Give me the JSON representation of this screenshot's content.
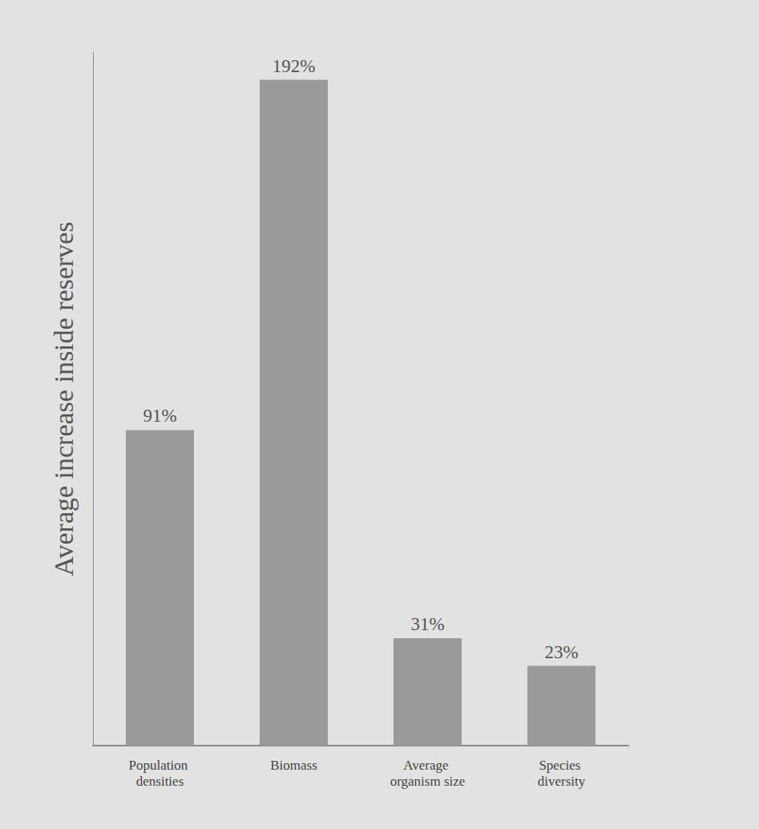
{
  "chart_data": {
    "type": "bar",
    "y_label": "Average increase inside reserves",
    "categories": [
      "Population densities",
      "Biomass",
      "Average organism size",
      "Species diversity"
    ],
    "values": [
      91,
      192,
      31,
      23
    ],
    "value_labels": [
      "91%",
      "192%",
      "31%",
      "23%"
    ],
    "color": "#9a9a9a",
    "ylim": [
      0,
      200
    ],
    "data_labels": true,
    "tick_labels": "x",
    "grid": false
  }
}
